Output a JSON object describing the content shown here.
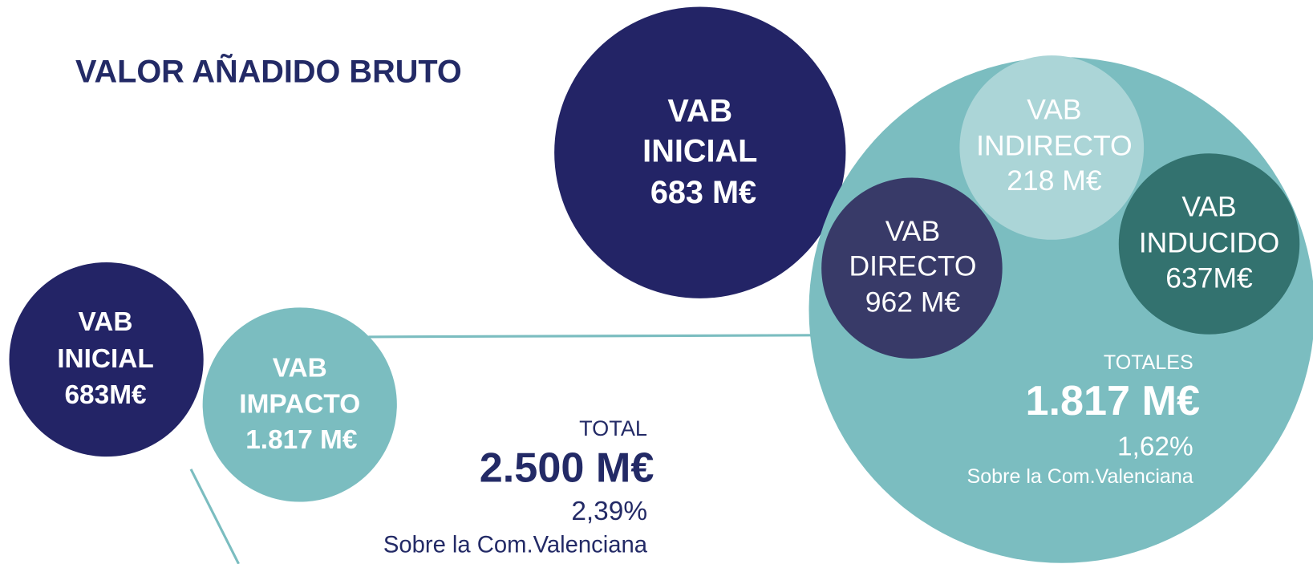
{
  "title": "VALOR AÑADIDO BRUTO",
  "initial_large": {
    "lines": [
      "VAB",
      "INICIAL",
      "683 M€"
    ]
  },
  "breakdown": {
    "indirect": {
      "lines": [
        "VAB",
        "INDIRECTO",
        "218 M€"
      ]
    },
    "direct": {
      "lines": [
        "VAB",
        "DIRECTO",
        "962 M€"
      ]
    },
    "induced": {
      "lines": [
        "VAB",
        "INDUCIDO",
        "637M€"
      ]
    },
    "totals_label": "TOTALES",
    "totals_value": "1.817 M€",
    "totals_share": "1,62%",
    "totals_note": "Sobre la Com.Valenciana"
  },
  "initial_small": {
    "lines": [
      "VAB",
      "INICIAL",
      "683M€"
    ]
  },
  "impact": {
    "lines": [
      "VAB",
      "IMPACTO",
      "1.817 M€"
    ]
  },
  "total": {
    "label": "TOTAL",
    "value": "2.500 M€",
    "share": "2,39%",
    "note": "Sobre la Com.Valenciana"
  }
}
